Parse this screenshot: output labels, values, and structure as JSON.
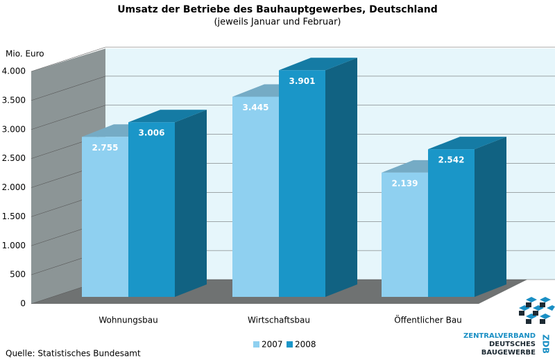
{
  "chart_data": {
    "type": "bar3d",
    "title": "Umsatz der Betriebe des Bauhauptgewerbes, Deutschland",
    "subtitle": "(jeweils Januar und Februar)",
    "y_label": "Mio. Euro",
    "categories": [
      "Wohnungsbau",
      "Wirtschaftsbau",
      "Öffentlicher Bau"
    ],
    "series": [
      {
        "name": "2007",
        "color": "#8fd0f0",
        "values": [
          2755,
          3445,
          2139
        ],
        "value_labels": [
          "2.755",
          "3.445",
          "2.139"
        ]
      },
      {
        "name": "2008",
        "color": "#1a96c8",
        "values": [
          3006,
          3901,
          2542
        ],
        "value_labels": [
          "3.006",
          "3.901",
          "2.542"
        ]
      }
    ],
    "ylim": [
      0,
      4000
    ],
    "yticks": [
      0,
      500,
      {
        "value": 1000,
        "label": "1.000"
      },
      {
        "value": 1500,
        "label": "1.500"
      },
      {
        "value": 2000,
        "label": "2.000"
      },
      {
        "value": 2500,
        "label": "2.500"
      },
      {
        "value": 3000,
        "label": "3.000"
      },
      {
        "value": 3500,
        "label": "3.500"
      },
      {
        "value": 4000,
        "label": "4.000"
      }
    ],
    "grid": true,
    "source": "Quelle: Statistisches Bundesamt",
    "logo": {
      "line1": "ZENTRALVERBAND",
      "line2": "DEUTSCHES",
      "line3": "BAUGEWERBE",
      "mark": "ZDB"
    }
  }
}
